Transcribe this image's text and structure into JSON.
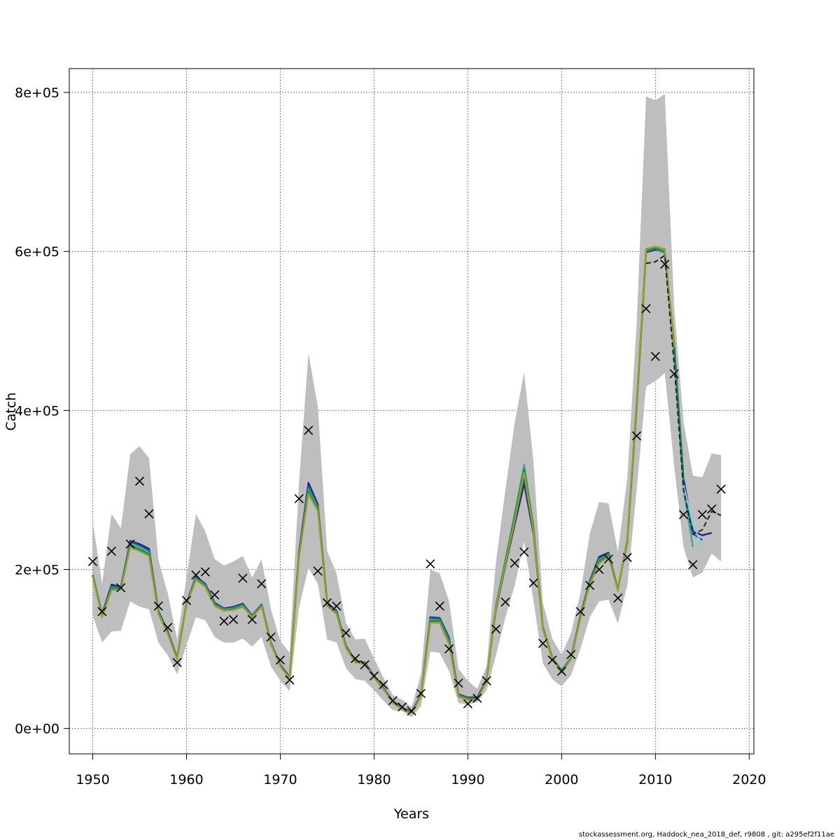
{
  "footer_text": "stockassessment.org, Haddock_nea_2018_def, r9808 , git: a295ef2f11ae",
  "chart_data": {
    "type": "line",
    "title": "",
    "xlabel": "Years",
    "ylabel": "Catch",
    "xlim": [
      1947.5,
      2020.5
    ],
    "ylim": [
      -32000,
      830000
    ],
    "xticks": [
      1950,
      1960,
      1970,
      1980,
      1990,
      2000,
      2010,
      2020
    ],
    "yticks": [
      0,
      200000,
      400000,
      600000,
      800000
    ],
    "ytick_labels": [
      "0e+00",
      "2e+05",
      "4e+05",
      "6e+05",
      "8e+05"
    ],
    "grid": true,
    "colors": {
      "band": "#bebebe",
      "observed_marker": "#000000",
      "retro_lines": [
        "#2a1f7a",
        "#1a5e9a",
        "#3aa6a0",
        "#1a8a4a",
        "#9aa020",
        "#86cce0",
        "#222222"
      ]
    },
    "confidence_band": {
      "x": [
        1950,
        1951,
        1952,
        1953,
        1954,
        1955,
        1956,
        1957,
        1958,
        1959,
        1960,
        1961,
        1962,
        1963,
        1964,
        1965,
        1966,
        1967,
        1968,
        1969,
        1970,
        1971,
        1972,
        1973,
        1974,
        1975,
        1976,
        1977,
        1978,
        1979,
        1980,
        1981,
        1982,
        1983,
        1984,
        1985,
        1986,
        1987,
        1988,
        1989,
        1990,
        1991,
        1992,
        1993,
        1994,
        1995,
        1996,
        1997,
        1998,
        1999,
        2000,
        2001,
        2002,
        2003,
        2004,
        2005,
        2006,
        2007,
        2008,
        2009,
        2010,
        2011,
        2012,
        2013,
        2014,
        2015,
        2016,
        2017
      ],
      "lower": [
        142000,
        108000,
        122000,
        123000,
        160000,
        153000,
        150000,
        108000,
        92000,
        68000,
        105000,
        140000,
        136000,
        115000,
        108000,
        108000,
        113000,
        103000,
        115000,
        78000,
        60000,
        47000,
        152000,
        202000,
        182000,
        112000,
        108000,
        76000,
        62000,
        60000,
        48000,
        35000,
        23000,
        22000,
        14000,
        28000,
        97000,
        95000,
        72000,
        32000,
        30000,
        33000,
        48000,
        92000,
        140000,
        180000,
        235000,
        160000,
        82000,
        62000,
        53000,
        67000,
        100000,
        140000,
        160000,
        162000,
        132000,
        180000,
        300000,
        430000,
        437000,
        447000,
        330000,
        228000,
        190000,
        196000,
        220000,
        210000
      ],
      "upper": [
        260000,
        182000,
        270000,
        252000,
        345000,
        355000,
        340000,
        212000,
        170000,
        112000,
        190000,
        270000,
        248000,
        213000,
        205000,
        210000,
        217000,
        190000,
        213000,
        150000,
        110000,
        95000,
        310000,
        472000,
        405000,
        223000,
        195000,
        133000,
        112000,
        113000,
        88000,
        64000,
        42000,
        36000,
        27000,
        68000,
        200000,
        195000,
        160000,
        75000,
        60000,
        50000,
        78000,
        210000,
        300000,
        385000,
        448000,
        335000,
        158000,
        113000,
        93000,
        120000,
        170000,
        245000,
        285000,
        283000,
        222000,
        315000,
        510000,
        795000,
        790000,
        798000,
        530000,
        385000,
        318000,
        316000,
        346000,
        344000
      ]
    },
    "observed_catch": {
      "x": [
        1950,
        1951,
        1952,
        1953,
        1954,
        1955,
        1956,
        1957,
        1958,
        1959,
        1960,
        1961,
        1962,
        1963,
        1964,
        1965,
        1966,
        1967,
        1968,
        1969,
        1970,
        1971,
        1972,
        1973,
        1974,
        1975,
        1976,
        1977,
        1978,
        1979,
        1980,
        1981,
        1982,
        1983,
        1984,
        1985,
        1986,
        1987,
        1988,
        1989,
        1990,
        1991,
        1992,
        1993,
        1994,
        1995,
        1996,
        1997,
        1998,
        1999,
        2000,
        2001,
        2002,
        2003,
        2004,
        2005,
        2006,
        2007,
        2008,
        2009,
        2010,
        2011,
        2012,
        2013,
        2014,
        2015,
        2016,
        2017
      ],
      "y": [
        210000,
        147000,
        223000,
        177000,
        232000,
        311000,
        270000,
        154000,
        127000,
        83000,
        161000,
        193000,
        197000,
        168000,
        135000,
        137000,
        189000,
        137000,
        182000,
        115000,
        86000,
        61000,
        289000,
        375000,
        198000,
        158000,
        154000,
        120000,
        88000,
        80000,
        66000,
        55000,
        35000,
        27000,
        22000,
        44000,
        207000,
        154000,
        100000,
        57000,
        31000,
        38000,
        60000,
        125000,
        159000,
        208000,
        222000,
        183000,
        107000,
        86000,
        72000,
        93000,
        147000,
        180000,
        200000,
        213000,
        164000,
        215000,
        368000,
        528000,
        468000,
        584000,
        446000,
        269000,
        206000,
        269000,
        276000,
        301000
      ]
    },
    "series": [
      {
        "x": [
          1950,
          1951,
          1952,
          1953,
          1954,
          1955,
          1956,
          1957,
          1958,
          1959,
          1960,
          1961,
          1962,
          1963,
          1964,
          1965,
          1966,
          1967,
          1968,
          1969,
          1970,
          1971,
          1972,
          1973,
          1974,
          1975,
          1976,
          1977,
          1978,
          1979,
          1980,
          1981,
          1982,
          1983,
          1984,
          1985,
          1986,
          1987,
          1988,
          1989,
          1990,
          1991,
          1992,
          1993,
          1994,
          1995,
          1996,
          1997,
          1998,
          1999,
          2000,
          2001,
          2002,
          2003,
          2004,
          2005,
          2006,
          2007,
          2008,
          2009,
          2010,
          2011,
          2012,
          2013,
          2014,
          2015,
          2016
        ],
        "y": [
          193000,
          144000,
          181000,
          178000,
          236000,
          232000,
          226000,
          148000,
          122000,
          89000,
          158000,
          191000,
          182000,
          158000,
          151000,
          153000,
          157000,
          142000,
          156000,
          108000,
          80000,
          65000,
          222000,
          309000,
          282000,
          158000,
          148000,
          104000,
          85000,
          83000,
          66000,
          51000,
          34000,
          26000,
          21000,
          42000,
          140000,
          139000,
          114000,
          43000,
          39000,
          39000,
          62000,
          150000,
          205000,
          257000,
          308000,
          245000,
          125000,
          89000,
          73000,
          89000,
          142000,
          186000,
          216000,
          221000,
          175000,
          235000,
          405000,
          599000,
          602000,
          600000,
          483000,
          314000,
          248000,
          243000,
          246000
        ]
      },
      {
        "x": [
          1950,
          1951,
          1952,
          1953,
          1954,
          1955,
          1956,
          1957,
          1958,
          1959,
          1960,
          1961,
          1962,
          1963,
          1964,
          1965,
          1966,
          1967,
          1968,
          1969,
          1970,
          1971,
          1972,
          1973,
          1974,
          1975,
          1976,
          1977,
          1978,
          1979,
          1980,
          1981,
          1982,
          1983,
          1984,
          1985,
          1986,
          1987,
          1988,
          1989,
          1990,
          1991,
          1992,
          1993,
          1994,
          1995,
          1996,
          1997,
          1998,
          1999,
          2000,
          2001,
          2002,
          2003,
          2004,
          2005,
          2006,
          2007,
          2008,
          2009,
          2010,
          2011,
          2012,
          2013,
          2014,
          2015
        ],
        "y": [
          193000,
          143000,
          179000,
          177000,
          235000,
          230000,
          224000,
          147000,
          121000,
          88000,
          157000,
          190000,
          181000,
          157000,
          150000,
          152000,
          156000,
          141000,
          155000,
          107000,
          79000,
          64000,
          220000,
          305000,
          279000,
          157000,
          147000,
          103000,
          84000,
          82000,
          65000,
          50000,
          33000,
          25000,
          20000,
          41000,
          139000,
          138000,
          112000,
          42000,
          38000,
          38000,
          61000,
          152000,
          208000,
          262000,
          314000,
          250000,
          127000,
          89000,
          72000,
          89000,
          141000,
          185000,
          214000,
          219000,
          175000,
          236000,
          406000,
          600000,
          603000,
          598000,
          478000,
          305000,
          245000,
          237000
        ]
      },
      {
        "x": [
          1950,
          1951,
          1952,
          1953,
          1954,
          1955,
          1956,
          1957,
          1958,
          1959,
          1960,
          1961,
          1962,
          1963,
          1964,
          1965,
          1966,
          1967,
          1968,
          1969,
          1970,
          1971,
          1972,
          1973,
          1974,
          1975,
          1976,
          1977,
          1978,
          1979,
          1980,
          1981,
          1982,
          1983,
          1984,
          1985,
          1986,
          1987,
          1988,
          1989,
          1990,
          1991,
          1992,
          1993,
          1994,
          1995,
          1996,
          1997,
          1998,
          1999,
          2000,
          2001,
          2002,
          2003,
          2004,
          2005,
          2006,
          2007,
          2008,
          2009,
          2010,
          2011,
          2012,
          2013,
          2014
        ],
        "y": [
          192000,
          143000,
          177000,
          176000,
          232000,
          227000,
          221000,
          146000,
          120000,
          88000,
          157000,
          189000,
          180000,
          156000,
          150000,
          151000,
          155000,
          141000,
          155000,
          107000,
          79000,
          64000,
          218000,
          301000,
          278000,
          156000,
          146000,
          103000,
          84000,
          82000,
          65000,
          50000,
          33000,
          25000,
          20000,
          41000,
          137000,
          136000,
          110000,
          42000,
          38000,
          37000,
          61000,
          155000,
          212000,
          270000,
          332000,
          254000,
          128000,
          89000,
          72000,
          89000,
          140000,
          184000,
          212000,
          219000,
          175000,
          237000,
          408000,
          601000,
          604000,
          598000,
          475000,
          300000,
          228000
        ]
      },
      {
        "x": [
          1950,
          1951,
          1952,
          1953,
          1954,
          1955,
          1956,
          1957,
          1958,
          1959,
          1960,
          1961,
          1962,
          1963,
          1964,
          1965,
          1966,
          1967,
          1968,
          1969,
          1970,
          1971,
          1972,
          1973,
          1974,
          1975,
          1976,
          1977,
          1978,
          1979,
          1980,
          1981,
          1982,
          1983,
          1984,
          1985,
          1986,
          1987,
          1988,
          1989,
          1990,
          1991,
          1992,
          1993,
          1994,
          1995,
          1996,
          1997,
          1998,
          1999,
          2000,
          2001,
          2002,
          2003,
          2004,
          2005,
          2006,
          2007,
          2008,
          2009,
          2010,
          2011,
          2012,
          2013
        ],
        "y": [
          192000,
          142000,
          176000,
          176000,
          230000,
          225000,
          219000,
          145000,
          120000,
          88000,
          156000,
          188000,
          179000,
          155000,
          149000,
          150000,
          154000,
          140000,
          154000,
          106000,
          79000,
          63000,
          217000,
          298000,
          276000,
          155000,
          145000,
          102000,
          84000,
          81000,
          64000,
          49000,
          33000,
          25000,
          20000,
          40000,
          135000,
          135000,
          108000,
          41000,
          37000,
          37000,
          60000,
          154000,
          210000,
          267000,
          326000,
          252000,
          127000,
          88000,
          71000,
          88000,
          139000,
          183000,
          210000,
          218000,
          174000,
          238000,
          410000,
          602000,
          604000,
          600000,
          480000,
          312000
        ]
      },
      {
        "x": [
          1950,
          1951,
          1952,
          1953,
          1954,
          1955,
          1956,
          1957,
          1958,
          1959,
          1960,
          1961,
          1962,
          1963,
          1964,
          1965,
          1966,
          1967,
          1968,
          1969,
          1970,
          1971,
          1972,
          1973,
          1974,
          1975,
          1976,
          1977,
          1978,
          1979,
          1980,
          1981,
          1982,
          1983,
          1984,
          1985,
          1986,
          1987,
          1988,
          1989,
          1990,
          1991,
          1992,
          1993,
          1994,
          1995,
          1996,
          1997,
          1998,
          1999,
          2000,
          2001,
          2002,
          2003,
          2004,
          2005,
          2006,
          2007,
          2008,
          2009,
          2010,
          2011,
          2012
        ],
        "y": [
          191000,
          140000,
          174000,
          175000,
          228000,
          223000,
          217000,
          144000,
          119000,
          87000,
          156000,
          187000,
          178000,
          154000,
          148000,
          149000,
          153000,
          140000,
          153000,
          106000,
          78000,
          63000,
          216000,
          295000,
          274000,
          154000,
          144000,
          101000,
          83000,
          81000,
          64000,
          49000,
          32000,
          24000,
          19000,
          40000,
          133000,
          133000,
          106000,
          40000,
          36000,
          36000,
          59000,
          152000,
          207000,
          262000,
          322000,
          248000,
          125000,
          87000,
          70000,
          87000,
          138000,
          181000,
          208000,
          216000,
          173000,
          238000,
          412000,
          603000,
          606000,
          603000,
          480000
        ]
      },
      {
        "x": [
          2013,
          2014,
          2015
        ],
        "y": [
          306000,
          256000,
          230000
        ]
      },
      {
        "x": [
          2009,
          2010,
          2011,
          2012,
          2013,
          2014,
          2015,
          2016,
          2017
        ],
        "y": [
          585000,
          587000,
          595000,
          458000,
          300000,
          244000,
          250000,
          273000,
          268000
        ]
      }
    ]
  }
}
